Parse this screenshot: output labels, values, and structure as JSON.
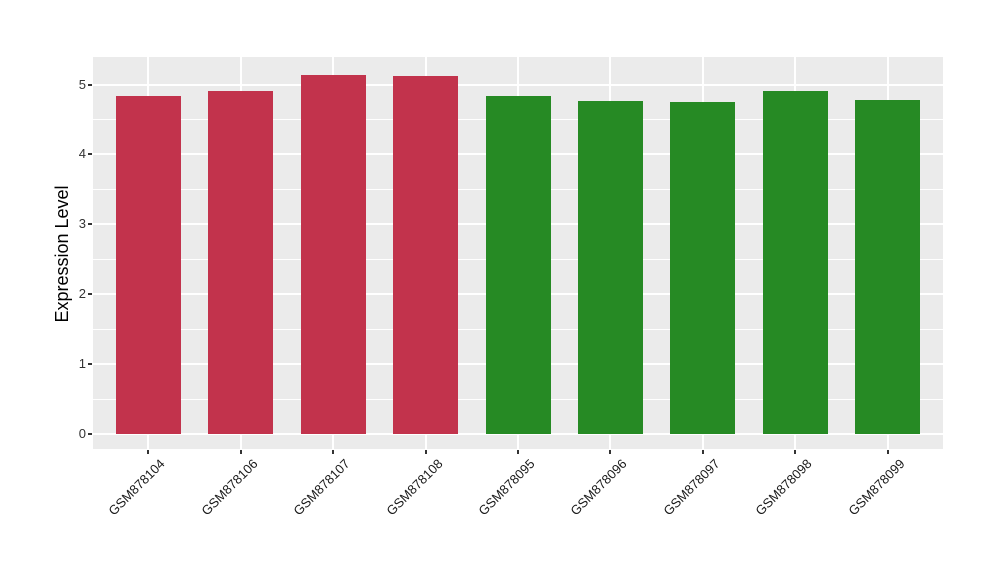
{
  "chart": {
    "page_bg": "#FFFFFF",
    "panel_bg": "#EBEBEB",
    "grid_color": "#FFFFFF",
    "tick_mark_color": "#333333",
    "axis_text_color": "#333333",
    "axis_title_color": "#000000",
    "red_bar_color": "#C2334C",
    "green_bar_color": "#268A24"
  },
  "chart_data": {
    "type": "bar",
    "title": "",
    "xlabel": "",
    "ylabel": "Expression Level",
    "categories": [
      "GSM878104",
      "GSM878106",
      "GSM878107",
      "GSM878108",
      "GSM878095",
      "GSM878096",
      "GSM878097",
      "GSM878098",
      "GSM878099"
    ],
    "values": [
      4.83,
      4.9,
      5.14,
      5.12,
      4.84,
      4.76,
      4.75,
      4.9,
      4.78
    ],
    "bar_colors": [
      "#C2334C",
      "#C2334C",
      "#C2334C",
      "#C2334C",
      "#268A24",
      "#268A24",
      "#268A24",
      "#268A24",
      "#268A24"
    ],
    "yticks": [
      0,
      1,
      2,
      3,
      4,
      5
    ],
    "ytick_labels": [
      "0",
      "1",
      "2",
      "3",
      "4",
      "5"
    ],
    "ylim": [
      -0.26,
      5.39
    ],
    "grid": "white major and minor horizontal lines, white vertical line at each category",
    "legend": "none",
    "x_label_rotation_deg": 45
  }
}
